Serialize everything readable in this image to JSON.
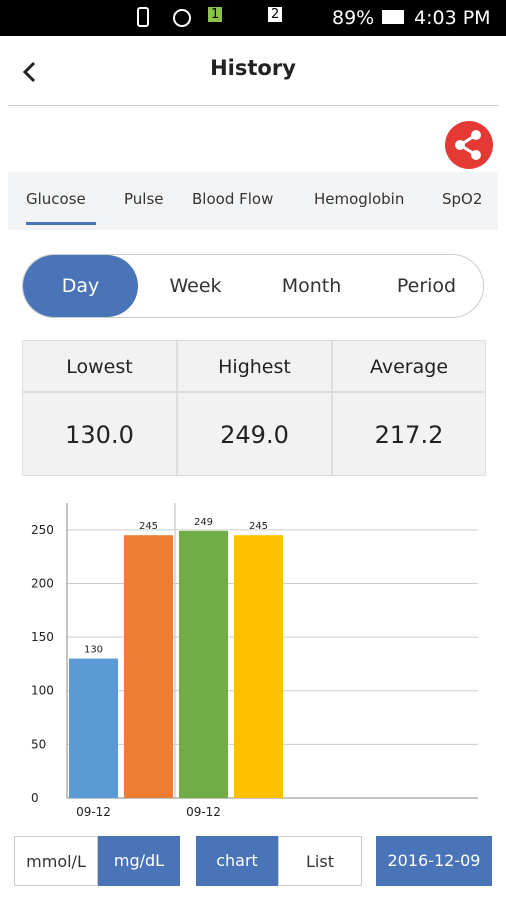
{
  "status_bar": {
    "sim1": "1",
    "sim2": "2",
    "battery": "89%",
    "time": "4:03 PM"
  },
  "header": {
    "title": "History"
  },
  "tabs": [
    "Glucose",
    "Pulse",
    "Blood Flow",
    "Hemoglobin",
    "SpO2"
  ],
  "periods": [
    "Day",
    "Week",
    "Month",
    "Period"
  ],
  "stats": {
    "labels": [
      "Lowest",
      "Highest",
      "Average"
    ],
    "values": [
      "130.0",
      "249.0",
      "217.2"
    ]
  },
  "chart_data": {
    "type": "bar",
    "categories": [
      "09-12",
      null,
      "09-12",
      null
    ],
    "values": [
      130,
      245,
      249,
      245
    ],
    "colors": [
      "#5b9bd5",
      "#ed7d31",
      "#70ad47",
      "#ffc000"
    ],
    "ylim": [
      0,
      275
    ],
    "yticks": [
      0,
      50,
      100,
      150,
      200,
      250
    ],
    "grid": true
  },
  "footer": {
    "units": [
      "mmol/L",
      "mg/dL"
    ],
    "views": [
      "chart",
      "List"
    ],
    "date": "2016-12-09"
  }
}
